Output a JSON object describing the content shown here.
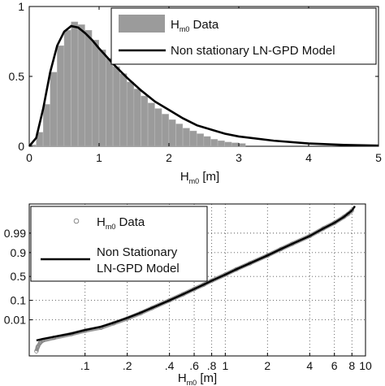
{
  "chart_data": [
    {
      "type": "bar",
      "title": "",
      "xlabel_main": "H",
      "xlabel_sub": "m0",
      "xlabel_unit": " [m]",
      "ylabel": "",
      "xlim": [
        0,
        5
      ],
      "ylim": [
        0,
        1
      ],
      "xticks": [
        "0",
        "1",
        "2",
        "3",
        "4",
        "5"
      ],
      "yticks": [
        "0",
        "0.5",
        "1"
      ],
      "grid": false,
      "legend_position": "top-right",
      "legend": {
        "series1": {
          "main": "H",
          "sub": "m0",
          "rest": " Data"
        },
        "series2": {
          "text": "Non stationary LN-GPD Model"
        }
      },
      "colors": {
        "histogram": "#9b9b9b",
        "model": "#000000"
      },
      "bin_width": 0.1,
      "bin_starts": [
        0.0,
        0.1,
        0.2,
        0.3,
        0.4,
        0.5,
        0.6,
        0.7,
        0.8,
        0.9,
        1.0,
        1.1,
        1.2,
        1.3,
        1.4,
        1.5,
        1.6,
        1.7,
        1.8,
        1.9,
        2.0,
        2.1,
        2.2,
        2.3,
        2.4,
        2.5,
        2.6,
        2.7,
        2.8,
        2.9,
        3.0
      ],
      "histogram_values": [
        0.01,
        0.1,
        0.3,
        0.53,
        0.72,
        0.83,
        0.89,
        0.87,
        0.83,
        0.76,
        0.69,
        0.63,
        0.57,
        0.52,
        0.46,
        0.41,
        0.36,
        0.31,
        0.27,
        0.23,
        0.19,
        0.16,
        0.13,
        0.11,
        0.09,
        0.07,
        0.05,
        0.04,
        0.03,
        0.025,
        0.02
      ],
      "model_x": [
        0.0,
        0.1,
        0.2,
        0.3,
        0.4,
        0.5,
        0.6,
        0.7,
        0.8,
        0.9,
        1.0,
        1.2,
        1.4,
        1.6,
        1.8,
        2.0,
        2.2,
        2.4,
        2.6,
        2.8,
        3.0,
        3.5,
        4.0,
        4.5,
        5.0
      ],
      "model_y": [
        0.0,
        0.06,
        0.27,
        0.53,
        0.72,
        0.82,
        0.86,
        0.85,
        0.81,
        0.76,
        0.7,
        0.59,
        0.49,
        0.4,
        0.32,
        0.26,
        0.2,
        0.15,
        0.12,
        0.09,
        0.07,
        0.04,
        0.02,
        0.01,
        0.005
      ]
    },
    {
      "type": "line",
      "title": "",
      "xlabel_main": "H",
      "xlabel_sub": "m0",
      "xlabel_unit": " [m]",
      "x_scale": "log",
      "xlim": [
        0.04,
        10
      ],
      "xticks": [
        {
          "v": 0.1,
          "label": ".1"
        },
        {
          "v": 0.2,
          "label": ".2"
        },
        {
          "v": 0.4,
          "label": ".4"
        },
        {
          "v": 0.6,
          "label": ".6"
        },
        {
          "v": 0.8,
          "label": ".8"
        },
        {
          "v": 1,
          "label": "1"
        },
        {
          "v": 2,
          "label": "2"
        },
        {
          "v": 4,
          "label": "4"
        },
        {
          "v": 6,
          "label": "6"
        },
        {
          "v": 8,
          "label": "8"
        },
        {
          "v": 10,
          "label": "10"
        }
      ],
      "y_scale": "probability",
      "ylim": [
        1e-05,
        0.99995
      ],
      "yticks": [
        {
          "v": 0.01,
          "label": "0.01"
        },
        {
          "v": 0.1,
          "label": "0.1"
        },
        {
          "v": 0.5,
          "label": "0.5"
        },
        {
          "v": 0.9,
          "label": "0.9"
        },
        {
          "v": 0.99,
          "label": "0.99"
        }
      ],
      "grid": "dotted",
      "legend_position": "top-left",
      "legend": {
        "series1": {
          "main": "H",
          "sub": "m0",
          "rest": " Data"
        },
        "series2": {
          "line1": "Non Stationary",
          "line2": "LN-GPD Model"
        }
      },
      "colors": {
        "data": "#9a9a9a",
        "model": "#000000"
      },
      "data_x": [
        0.045,
        0.046,
        0.048,
        0.05,
        0.06,
        0.08,
        0.1,
        0.13,
        0.16,
        0.2,
        0.25,
        0.3,
        0.4,
        0.5,
        0.6,
        0.7,
        0.8,
        1.0,
        1.2,
        1.5,
        2.0,
        2.5,
        3.0,
        4.0,
        5.0,
        6.0,
        7.0,
        7.5,
        8.0
      ],
      "data_y": [
        3e-05,
        8e-05,
        0.0002,
        0.0003,
        0.0005,
        0.001,
        0.0018,
        0.003,
        0.006,
        0.012,
        0.025,
        0.045,
        0.1,
        0.17,
        0.25,
        0.33,
        0.41,
        0.54,
        0.65,
        0.76,
        0.87,
        0.93,
        0.96,
        0.985,
        0.995,
        0.998,
        0.9993,
        0.9996,
        0.9998
      ],
      "model_x": [
        0.045,
        0.05,
        0.06,
        0.08,
        0.1,
        0.13,
        0.16,
        0.2,
        0.25,
        0.3,
        0.4,
        0.5,
        0.6,
        0.7,
        0.8,
        1.0,
        1.2,
        1.5,
        2.0,
        2.5,
        3.0,
        4.0,
        5.0,
        6.0,
        7.0,
        8.0,
        8.4
      ],
      "model_y": [
        0.0003,
        0.0004,
        0.0006,
        0.0011,
        0.002,
        0.0035,
        0.0065,
        0.013,
        0.026,
        0.046,
        0.1,
        0.17,
        0.25,
        0.33,
        0.41,
        0.54,
        0.65,
        0.76,
        0.87,
        0.93,
        0.96,
        0.985,
        0.995,
        0.998,
        0.9993,
        0.9998,
        0.99992
      ]
    }
  ]
}
